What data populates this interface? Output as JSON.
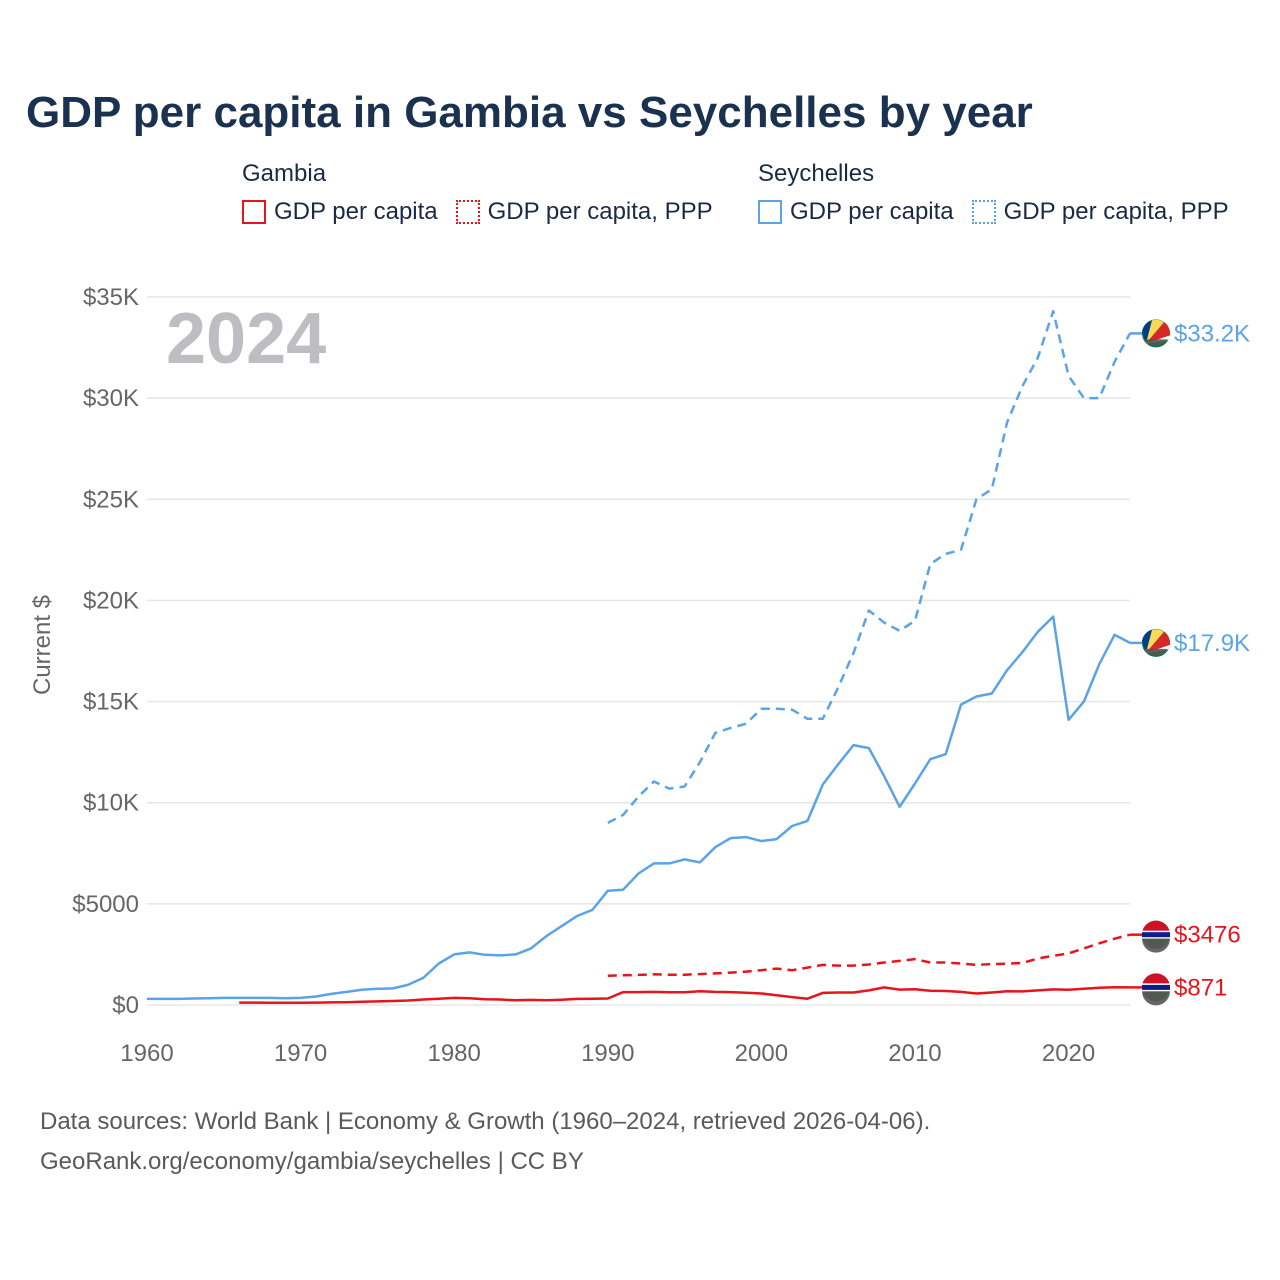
{
  "title": "GDP per capita in Gambia vs Seychelles by year",
  "legend": {
    "groups": [
      {
        "name": "Gambia",
        "items": [
          {
            "label": "GDP per capita",
            "style": "solid",
            "color": "#e8141b"
          },
          {
            "label": "GDP per capita, PPP",
            "style": "dotted",
            "color": "#e8141b"
          }
        ]
      },
      {
        "name": "Seychelles",
        "items": [
          {
            "label": "GDP per capita",
            "style": "solid",
            "color": "#5aa3e6"
          },
          {
            "label": "GDP per capita, PPP",
            "style": "dotted",
            "color": "#5aa3e6"
          }
        ]
      }
    ]
  },
  "year_overlay": "2024",
  "footer": {
    "line1": "Data sources: World Bank | Economy & Growth (1960–2024, retrieved 2026-04-06).",
    "line2": "GeoRank.org/economy/gambia/seychelles | CC BY"
  },
  "chart_data": {
    "type": "line",
    "title": "GDP per capita in Gambia vs Seychelles by year",
    "xlabel": "",
    "ylabel": "Current $",
    "xlim": [
      1960,
      2024
    ],
    "ylim": [
      0,
      35000
    ],
    "x_ticks": [
      1960,
      1970,
      1980,
      1990,
      2000,
      2010,
      2020
    ],
    "y_ticks": [
      0,
      5000,
      10000,
      15000,
      20000,
      25000,
      30000,
      35000
    ],
    "y_tick_labels": [
      "$0",
      "$5000",
      "$10K",
      "$15K",
      "$20K",
      "$25K",
      "$30K",
      "$35K"
    ],
    "grid": true,
    "series": [
      {
        "name": "Seychelles GDP per capita, PPP",
        "color": "#5aa3e6",
        "dash": "dashed",
        "end_label": "$33.2K",
        "x": [
          1990,
          1991,
          1992,
          1993,
          1994,
          1995,
          1996,
          1997,
          1998,
          1999,
          2000,
          2001,
          2002,
          2003,
          2004,
          2005,
          2006,
          2007,
          2008,
          2009,
          2010,
          2011,
          2012,
          2013,
          2014,
          2015,
          2016,
          2017,
          2018,
          2019,
          2020,
          2021,
          2022,
          2023,
          2024
        ],
        "values": [
          9000,
          9400,
          10300,
          11050,
          10700,
          10800,
          12000,
          13450,
          13700,
          13900,
          14650,
          14650,
          14600,
          14150,
          14150,
          15700,
          17400,
          19500,
          18900,
          18500,
          19000,
          21800,
          22300,
          22500,
          25000,
          25500,
          28800,
          30600,
          32000,
          34300,
          31100,
          30000,
          30000,
          31800,
          33200
        ]
      },
      {
        "name": "Seychelles GDP per capita",
        "color": "#5aa3e6",
        "dash": "solid",
        "end_label": "$17.9K",
        "x": [
          1960,
          1961,
          1962,
          1963,
          1964,
          1965,
          1966,
          1967,
          1968,
          1969,
          1970,
          1971,
          1972,
          1973,
          1974,
          1975,
          1976,
          1977,
          1978,
          1979,
          1980,
          1981,
          1982,
          1983,
          1984,
          1985,
          1986,
          1987,
          1988,
          1989,
          1990,
          1991,
          1992,
          1993,
          1994,
          1995,
          1996,
          1997,
          1998,
          1999,
          2000,
          2001,
          2002,
          2003,
          2004,
          2005,
          2006,
          2007,
          2008,
          2009,
          2010,
          2011,
          2012,
          2013,
          2014,
          2015,
          2016,
          2017,
          2018,
          2019,
          2020,
          2021,
          2022,
          2023,
          2024
        ],
        "values": [
          300,
          300,
          300,
          320,
          330,
          350,
          350,
          350,
          350,
          330,
          350,
          420,
          550,
          650,
          750,
          800,
          820,
          1000,
          1350,
          2050,
          2500,
          2600,
          2480,
          2450,
          2500,
          2800,
          3400,
          3900,
          4400,
          4700,
          5650,
          5700,
          6500,
          7000,
          7000,
          7200,
          7050,
          7800,
          8250,
          8300,
          8100,
          8200,
          8850,
          9100,
          10900,
          11900,
          12850,
          12700,
          11300,
          9800,
          10950,
          12150,
          12400,
          14850,
          15250,
          15400,
          16550,
          17450,
          18450,
          19200,
          14100,
          15000,
          16850,
          18300,
          17900
        ]
      },
      {
        "name": "Gambia GDP per capita, PPP",
        "color": "#e8141b",
        "dash": "dashed",
        "end_label": "$3476",
        "x": [
          1990,
          1991,
          1992,
          1993,
          1994,
          1995,
          1996,
          1997,
          1998,
          1999,
          2000,
          2001,
          2002,
          2003,
          2004,
          2005,
          2006,
          2007,
          2008,
          2009,
          2010,
          2011,
          2012,
          2013,
          2014,
          2015,
          2016,
          2017,
          2018,
          2019,
          2020,
          2021,
          2022,
          2023,
          2024
        ],
        "values": [
          1450,
          1470,
          1490,
          1520,
          1500,
          1500,
          1530,
          1560,
          1600,
          1650,
          1720,
          1800,
          1720,
          1850,
          1980,
          1950,
          1950,
          2000,
          2100,
          2180,
          2270,
          2100,
          2100,
          2050,
          1980,
          2020,
          2040,
          2080,
          2300,
          2430,
          2550,
          2800,
          3050,
          3280,
          3476
        ]
      },
      {
        "name": "Gambia GDP per capita",
        "color": "#e8141b",
        "dash": "solid",
        "end_label": "$871",
        "x": [
          1966,
          1967,
          1968,
          1969,
          1970,
          1971,
          1972,
          1973,
          1974,
          1975,
          1976,
          1977,
          1978,
          1979,
          1980,
          1981,
          1982,
          1983,
          1984,
          1985,
          1986,
          1987,
          1988,
          1989,
          1990,
          1991,
          1992,
          1993,
          1994,
          1995,
          1996,
          1997,
          1998,
          1999,
          2000,
          2001,
          2002,
          2003,
          2004,
          2005,
          2006,
          2007,
          2008,
          2009,
          2010,
          2011,
          2012,
          2013,
          2014,
          2015,
          2016,
          2017,
          2018,
          2019,
          2020,
          2021,
          2022,
          2023,
          2024
        ],
        "values": [
          120,
          120,
          110,
          110,
          110,
          120,
          130,
          140,
          160,
          180,
          200,
          220,
          270,
          310,
          350,
          330,
          280,
          270,
          230,
          250,
          230,
          260,
          300,
          310,
          320,
          640,
          640,
          650,
          630,
          630,
          680,
          650,
          640,
          610,
          570,
          480,
          390,
          310,
          600,
          620,
          620,
          720,
          870,
          760,
          780,
          700,
          690,
          650,
          570,
          620,
          680,
          670,
          720,
          770,
          750,
          800,
          850,
          880,
          871
        ]
      }
    ]
  }
}
